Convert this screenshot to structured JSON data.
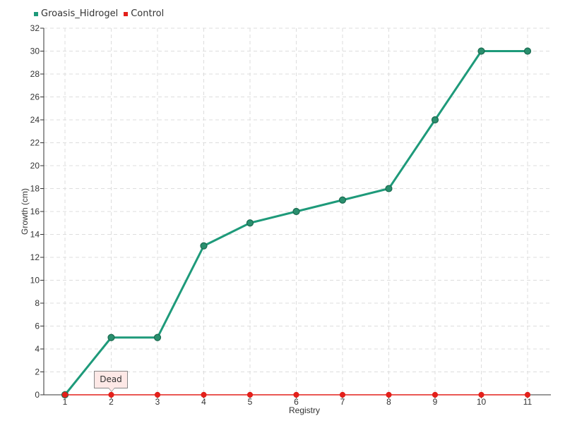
{
  "chart_data": {
    "type": "line",
    "categories": [
      "1",
      "2",
      "3",
      "4",
      "5",
      "6",
      "7",
      "8",
      "9",
      "10",
      "11"
    ],
    "series": [
      {
        "name": "Groasis_Hidrogel",
        "color": "#1e9a7a",
        "values": [
          0,
          5,
          5,
          13,
          15,
          16,
          17,
          18,
          24,
          30,
          30
        ]
      },
      {
        "name": "Control",
        "color": "#e3201b",
        "values": [
          0,
          0,
          0,
          0,
          0,
          0,
          0,
          0,
          0,
          0,
          0
        ]
      }
    ],
    "xlabel": "Registry",
    "ylabel": "Growth (cm)",
    "ylim": [
      0,
      32
    ],
    "yticks": [
      0,
      2,
      4,
      6,
      8,
      10,
      12,
      14,
      16,
      18,
      20,
      22,
      24,
      26,
      28,
      30,
      32
    ],
    "grid": true,
    "legend_position": "top-left",
    "annotation": {
      "text": "Dead",
      "series": "Control",
      "category": "2"
    }
  }
}
